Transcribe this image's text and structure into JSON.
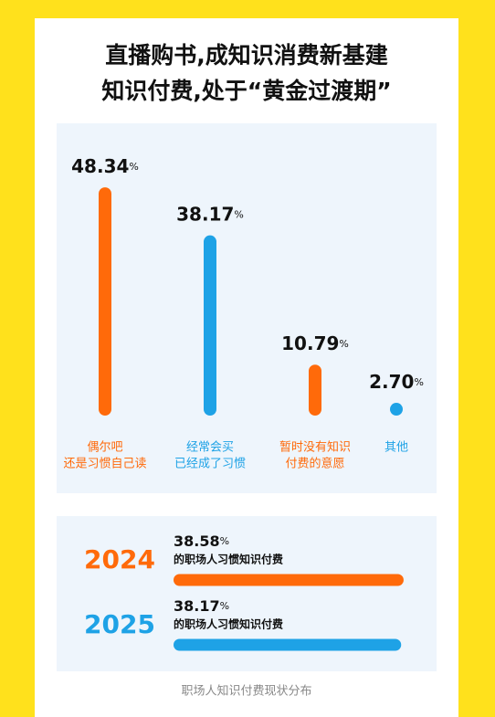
{
  "title": [
    "直播购书,成知识消费新基建",
    "知识付费,处于“黄金过渡期”"
  ],
  "chart_data": [
    {
      "type": "bar",
      "categories": [
        [
          "偶尔吧",
          "还是习惯自己读"
        ],
        [
          "经常会买",
          "已经成了习惯"
        ],
        [
          "暂时没有知识",
          "付费的意愿"
        ],
        [
          "其他"
        ]
      ],
      "values": [
        48.34,
        38.17,
        10.79,
        2.7
      ],
      "value_labels": [
        "48.34",
        "38.17",
        "10.79",
        "2.70"
      ],
      "unit": "%",
      "colors": [
        "#ff6a0a",
        "#1ea2e6",
        "#ff6a0a",
        "#1ea2e6"
      ]
    },
    {
      "type": "hbar",
      "categories": [
        "2024",
        "2025"
      ],
      "values": [
        38.58,
        38.17
      ],
      "value_labels": [
        "38.58",
        "38.17"
      ],
      "unit": "%",
      "descriptions": [
        "的职场人习惯知识付费",
        "的职场人习惯知识付费"
      ],
      "colors": [
        "#ff6a0a",
        "#1ea2e6"
      ]
    }
  ],
  "footer": "职场人知识付费现状分布"
}
